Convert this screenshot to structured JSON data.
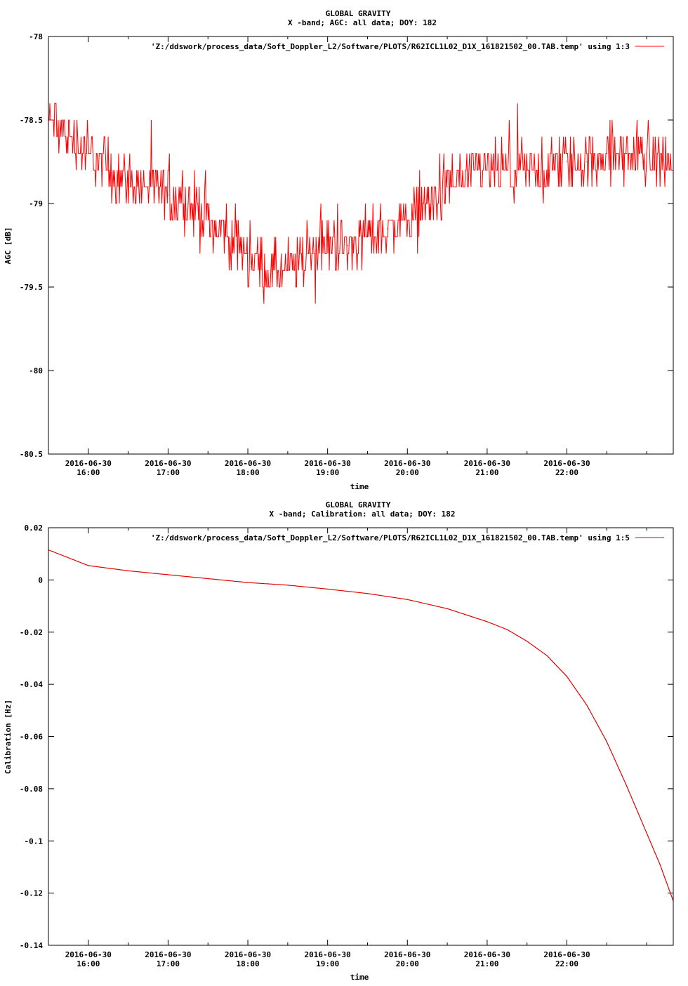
{
  "colors": {
    "series": "#ff0000",
    "series_line": "#e00000",
    "axis": "#000000",
    "background": "#ffffff"
  },
  "chart_data": [
    {
      "type": "line",
      "title": "GLOBAL GRAVITY",
      "subtitle": "X -band; AGC: all data; DOY: 182",
      "xlabel": "time",
      "ylabel": "AGC [dB]",
      "ylim": [
        -80.5,
        -78
      ],
      "yticks": [
        -78,
        -78.5,
        -79,
        -79.5,
        -80,
        -80.5
      ],
      "ytick_labels": [
        "-78",
        "-78.5",
        "-79",
        "-79.5",
        "-80",
        "-80.5"
      ],
      "xlim": [
        "2016-06-30 15:30",
        "2016-06-30 23:20"
      ],
      "xticks": [
        "2016-06-30 16:00",
        "2016-06-30 17:00",
        "2016-06-30 18:00",
        "2016-06-30 19:00",
        "2016-06-30 20:00",
        "2016-06-30 21:00",
        "2016-06-30 22:00"
      ],
      "xtick_labels": [
        [
          "2016-06-30",
          "16:00"
        ],
        [
          "2016-06-30",
          "17:00"
        ],
        [
          "2016-06-30",
          "18:00"
        ],
        [
          "2016-06-30",
          "19:00"
        ],
        [
          "2016-06-30",
          "20:00"
        ],
        [
          "2016-06-30",
          "21:00"
        ],
        [
          "2016-06-30",
          "22:00"
        ]
      ],
      "legend": "top-right",
      "series": [
        {
          "name": "'Z:/ddswork/process_data/Soft_Doppler_L2/Software/PLOTS/R62ICL1L02_D1X_161821502_00.TAB.temp' using 1:3",
          "x": [
            "15:30",
            "15:45",
            "16:00",
            "16:15",
            "16:30",
            "16:45",
            "17:00",
            "17:15",
            "17:30",
            "17:45",
            "18:00",
            "18:15",
            "18:30",
            "18:45",
            "19:00",
            "19:15",
            "19:30",
            "19:45",
            "20:00",
            "20:15",
            "20:30",
            "20:45",
            "21:00",
            "21:15",
            "21:30",
            "21:45",
            "22:00",
            "22:15",
            "22:30",
            "22:45",
            "23:00",
            "23:20"
          ],
          "values": [
            -78.5,
            -78.6,
            -78.7,
            -78.8,
            -78.85,
            -78.9,
            -78.95,
            -79.0,
            -79.1,
            -79.2,
            -79.3,
            -79.4,
            -79.4,
            -79.3,
            -79.25,
            -79.25,
            -79.2,
            -79.15,
            -79.1,
            -79.0,
            -78.9,
            -78.85,
            -78.8,
            -78.8,
            -78.8,
            -78.8,
            -78.75,
            -78.75,
            -78.7,
            -78.7,
            -78.7,
            -78.75
          ],
          "noise": 0.25,
          "points": 900
        }
      ]
    },
    {
      "type": "line",
      "title": "GLOBAL GRAVITY",
      "subtitle": "X -band; Calibration: all data; DOY: 182",
      "xlabel": "time",
      "ylabel": "Calibration [Hz]",
      "ylim": [
        -0.14,
        0.02
      ],
      "yticks": [
        0.02,
        0,
        -0.02,
        -0.04,
        -0.06,
        -0.08,
        -0.1,
        -0.12,
        -0.14
      ],
      "ytick_labels": [
        "0.02",
        "0",
        "-0.02",
        "-0.04",
        "-0.06",
        "-0.08",
        "-0.1",
        "-0.12",
        "-0.14"
      ],
      "xlim": [
        "2016-06-30 15:30",
        "2016-06-30 23:20"
      ],
      "xticks": [
        "2016-06-30 16:00",
        "2016-06-30 17:00",
        "2016-06-30 18:00",
        "2016-06-30 19:00",
        "2016-06-30 20:00",
        "2016-06-30 21:00",
        "2016-06-30 22:00"
      ],
      "xtick_labels": [
        [
          "2016-06-30",
          "16:00"
        ],
        [
          "2016-06-30",
          "17:00"
        ],
        [
          "2016-06-30",
          "18:00"
        ],
        [
          "2016-06-30",
          "19:00"
        ],
        [
          "2016-06-30",
          "20:00"
        ],
        [
          "2016-06-30",
          "21:00"
        ],
        [
          "2016-06-30",
          "22:00"
        ]
      ],
      "legend": "top-right",
      "series": [
        {
          "name": "'Z:/ddswork/process_data/Soft_Doppler_L2/Software/PLOTS/R62ICL1L02_D1X_161821502_00.TAB.temp' using 1:5",
          "x": [
            "15:30",
            "16:00",
            "16:30",
            "17:00",
            "17:30",
            "18:00",
            "18:30",
            "19:00",
            "19:30",
            "20:00",
            "20:30",
            "21:00",
            "21:15",
            "21:30",
            "21:45",
            "22:00",
            "22:15",
            "22:30",
            "22:45",
            "23:00",
            "23:10",
            "23:20"
          ],
          "values": [
            0.0115,
            0.0055,
            0.0035,
            0.002,
            0.0005,
            -0.001,
            -0.002,
            -0.0035,
            -0.0052,
            -0.0075,
            -0.011,
            -0.016,
            -0.019,
            -0.0235,
            -0.029,
            -0.037,
            -0.048,
            -0.062,
            -0.079,
            -0.097,
            -0.109,
            -0.123
          ]
        }
      ]
    }
  ]
}
